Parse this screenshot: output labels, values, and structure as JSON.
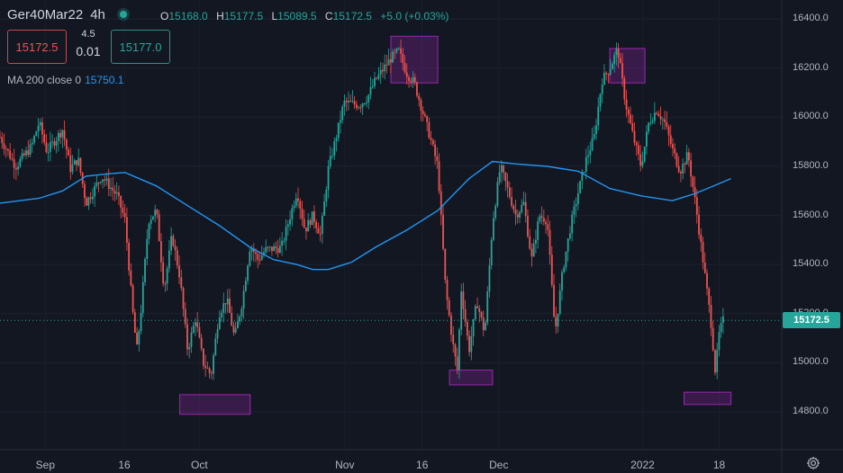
{
  "header": {
    "symbol": "Ger40Mar22",
    "timeframe": "4h",
    "ohlc": [
      {
        "key": "O",
        "value": "15168.0"
      },
      {
        "key": "H",
        "value": "15177.5"
      },
      {
        "key": "L",
        "value": "15089.5"
      },
      {
        "key": "C",
        "value": "15172.5"
      }
    ],
    "change": "+5.0 (+0.03%)"
  },
  "trade": {
    "sell_price": "15172.5",
    "spread_top": "4.5",
    "spread_bottom": "0.01",
    "buy_price": "15177.0"
  },
  "indicator": {
    "label": "MA 200 close 0",
    "value": "15750.1"
  },
  "last_price_label": "15172.5",
  "colors": {
    "up": "#26a69a",
    "down": "#ef5350",
    "ma": "#2196f3",
    "highlight": "#9c27b0",
    "background": "#131722"
  },
  "icons": [
    "settings-gear-icon"
  ],
  "chart_data": {
    "type": "candlestick",
    "yticks": [
      "14800.0",
      "15000.0",
      "15200.0",
      "15400.0",
      "15600.0",
      "15800.0",
      "16000.0",
      "16200.0",
      "16400.0"
    ],
    "ylim": [
      14720,
      16440
    ],
    "xticks": [
      "Sep",
      "16",
      "Oct",
      "Nov",
      "16",
      "Dec",
      "2022",
      "18"
    ],
    "xlim": [
      0,
      100
    ],
    "last_price": 15172.5,
    "ma_line": {
      "name": "MA 200 close 0",
      "points": [
        [
          0,
          15650
        ],
        [
          5,
          15670
        ],
        [
          8,
          15700
        ],
        [
          11,
          15760
        ],
        [
          14,
          15770
        ],
        [
          16,
          15775
        ],
        [
          20,
          15720
        ],
        [
          24,
          15640
        ],
        [
          28,
          15560
        ],
        [
          32,
          15470
        ],
        [
          35,
          15420
        ],
        [
          38,
          15400
        ],
        [
          40,
          15380
        ],
        [
          42,
          15380
        ],
        [
          45,
          15410
        ],
        [
          48,
          15470
        ],
        [
          52,
          15540
        ],
        [
          56,
          15620
        ],
        [
          60,
          15750
        ],
        [
          63,
          15820
        ],
        [
          66,
          15810
        ],
        [
          70,
          15800
        ],
        [
          74,
          15780
        ],
        [
          78,
          15710
        ],
        [
          82,
          15680
        ],
        [
          86,
          15660
        ],
        [
          89,
          15690
        ],
        [
          92,
          15730
        ],
        [
          93.5,
          15750
        ]
      ]
    },
    "price_path": [
      [
        0,
        15920
      ],
      [
        2,
        15800
      ],
      [
        4,
        15880
      ],
      [
        5,
        15980
      ],
      [
        6,
        15860
      ],
      [
        8,
        15950
      ],
      [
        9,
        15790
      ],
      [
        10,
        15830
      ],
      [
        11,
        15650
      ],
      [
        13,
        15760
      ],
      [
        15,
        15680
      ],
      [
        16,
        15580
      ],
      [
        17,
        15200
      ],
      [
        17.5,
        15050
      ],
      [
        18,
        15200
      ],
      [
        19,
        15580
      ],
      [
        20,
        15620
      ],
      [
        21,
        15300
      ],
      [
        22,
        15520
      ],
      [
        23,
        15350
      ],
      [
        24,
        15050
      ],
      [
        25,
        15180
      ],
      [
        26,
        15000
      ],
      [
        27,
        14950
      ],
      [
        28,
        15200
      ],
      [
        29,
        15260
      ],
      [
        30,
        15100
      ],
      [
        31,
        15250
      ],
      [
        32,
        15480
      ],
      [
        33,
        15420
      ],
      [
        34,
        15460
      ],
      [
        36,
        15470
      ],
      [
        38,
        15700
      ],
      [
        39,
        15540
      ],
      [
        40,
        15600
      ],
      [
        41,
        15520
      ],
      [
        42,
        15790
      ],
      [
        43,
        15920
      ],
      [
        44,
        16060
      ],
      [
        46,
        16050
      ],
      [
        47,
        16080
      ],
      [
        48,
        16150
      ],
      [
        50,
        16240
      ],
      [
        51,
        16270
      ],
      [
        52,
        16180
      ],
      [
        53,
        16140
      ],
      [
        54,
        16030
      ],
      [
        55,
        15920
      ],
      [
        56,
        15800
      ],
      [
        57,
        15300
      ],
      [
        58,
        15060
      ],
      [
        58.5,
        14970
      ],
      [
        59,
        15300
      ],
      [
        60,
        15050
      ],
      [
        61,
        15250
      ],
      [
        62,
        15120
      ],
      [
        63,
        15570
      ],
      [
        64,
        15800
      ],
      [
        65,
        15700
      ],
      [
        66,
        15600
      ],
      [
        67,
        15650
      ],
      [
        68,
        15420
      ],
      [
        69,
        15600
      ],
      [
        70,
        15580
      ],
      [
        71,
        15120
      ],
      [
        72,
        15380
      ],
      [
        73,
        15560
      ],
      [
        74,
        15700
      ],
      [
        75,
        15830
      ],
      [
        76,
        15920
      ],
      [
        77,
        16150
      ],
      [
        78,
        16200
      ],
      [
        79,
        16280
      ],
      [
        80,
        16060
      ],
      [
        81,
        15920
      ],
      [
        82,
        15800
      ],
      [
        83,
        15980
      ],
      [
        84,
        16030
      ],
      [
        85,
        15980
      ],
      [
        86,
        15870
      ],
      [
        87,
        15780
      ],
      [
        88,
        15850
      ],
      [
        89,
        15640
      ],
      [
        90,
        15400
      ],
      [
        91,
        15150
      ],
      [
        91.5,
        14960
      ],
      [
        92,
        15120
      ],
      [
        92.5,
        15172.5
      ]
    ],
    "highlights": [
      {
        "x": [
          50,
          56
        ],
        "y": [
          16140,
          16330
        ]
      },
      {
        "x": [
          78,
          82.5
        ],
        "y": [
          16140,
          16280
        ]
      },
      {
        "x": [
          57.5,
          63
        ],
        "y": [
          14910,
          14970
        ]
      },
      {
        "x": [
          23,
          32
        ],
        "y": [
          14790,
          14870
        ]
      },
      {
        "x": [
          87.5,
          93.5
        ],
        "y": [
          14830,
          14880
        ]
      }
    ]
  }
}
